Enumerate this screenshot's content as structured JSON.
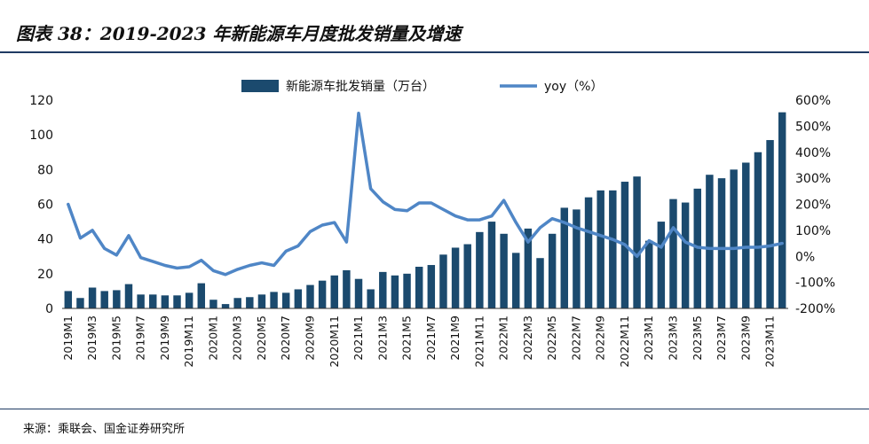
{
  "header": {
    "title": "图表 38：2019-2023 年新能源车月度批发销量及增速"
  },
  "footer": {
    "source": "来源：乘联会、国金证券研究所"
  },
  "colors": {
    "bar": "#1b4a6e",
    "line": "#4f86c6",
    "axis": "#333333",
    "rule": "#1f3b63"
  },
  "chart_data": {
    "type": "bar+line",
    "title": "2019-2023 年新能源车月度批发销量及增速",
    "categories": [
      "2019M1",
      "2019M2",
      "2019M3",
      "2019M4",
      "2019M5",
      "2019M6",
      "2019M7",
      "2019M8",
      "2019M9",
      "2019M10",
      "2019M11",
      "2019M12",
      "2020M1",
      "2020M2",
      "2020M3",
      "2020M4",
      "2020M5",
      "2020M6",
      "2020M7",
      "2020M8",
      "2020M9",
      "2020M10",
      "2020M11",
      "2020M12",
      "2021M1",
      "2021M2",
      "2021M3",
      "2021M4",
      "2021M5",
      "2021M6",
      "2021M7",
      "2021M8",
      "2021M9",
      "2021M10",
      "2021M11",
      "2021M12",
      "2022M1",
      "2022M2",
      "2022M3",
      "2022M4",
      "2022M5",
      "2022M6",
      "2022M7",
      "2022M8",
      "2022M9",
      "2022M10",
      "2022M11",
      "2022M12",
      "2023M1",
      "2023M2",
      "2023M3",
      "2023M4",
      "2023M5",
      "2023M6",
      "2023M7",
      "2023M8",
      "2023M9",
      "2023M10",
      "2023M11",
      "2023M12"
    ],
    "x_tick_labels": [
      "2019M1",
      "2019M3",
      "2019M5",
      "2019M7",
      "2019M9",
      "2019M11",
      "2020M1",
      "2020M3",
      "2020M5",
      "2020M7",
      "2020M9",
      "2020M11",
      "2021M1",
      "2021M3",
      "2021M5",
      "2021M7",
      "2021M9",
      "2021M11",
      "2022M1",
      "2022M3",
      "2022M5",
      "2022M7",
      "2022M9",
      "2022M11",
      "2023M1",
      "2023M3",
      "2023M5",
      "2023M7",
      "2023M9",
      "2023M11"
    ],
    "series": [
      {
        "name": "新能源车批发销量（万台）",
        "type": "bar",
        "axis": "left",
        "values": [
          10,
          6,
          12,
          10,
          10.5,
          14,
          8,
          8,
          7.5,
          7.5,
          9,
          14.5,
          5,
          2.5,
          6,
          6.5,
          8,
          9.5,
          9,
          11,
          13.5,
          16,
          19,
          22,
          17,
          11,
          21,
          19,
          20,
          24,
          25,
          31,
          35,
          37,
          44,
          50,
          43,
          32,
          46,
          29,
          43,
          58,
          57,
          64,
          68,
          68,
          73,
          76,
          39,
          50,
          63,
          61,
          69,
          77,
          75,
          80,
          84,
          90,
          97,
          113
        ]
      },
      {
        "name": "yoy（%）",
        "type": "line",
        "axis": "right",
        "values": [
          200,
          70,
          100,
          30,
          5,
          80,
          -5,
          -20,
          -35,
          -45,
          -40,
          -15,
          -55,
          -70,
          -50,
          -35,
          -25,
          -35,
          20,
          40,
          95,
          120,
          130,
          55,
          550,
          260,
          210,
          180,
          175,
          205,
          205,
          180,
          155,
          140,
          140,
          155,
          215,
          130,
          55,
          110,
          145,
          130,
          110,
          95,
          80,
          65,
          45,
          0,
          60,
          35,
          110,
          55,
          35,
          30,
          30,
          30,
          35,
          35,
          40,
          50
        ]
      }
    ],
    "y_left": {
      "min": 0,
      "max": 120,
      "ticks": [
        "0",
        "20",
        "40",
        "60",
        "80",
        "100",
        "120"
      ]
    },
    "y_right": {
      "min": -200,
      "max": 600,
      "ticks": [
        "-200%",
        "-100%",
        "0%",
        "100%",
        "200%",
        "300%",
        "400%",
        "500%",
        "600%"
      ]
    },
    "legend": {
      "position": "top-center",
      "items": [
        "新能源车批发销量（万台）",
        "yoy（%）"
      ]
    }
  }
}
